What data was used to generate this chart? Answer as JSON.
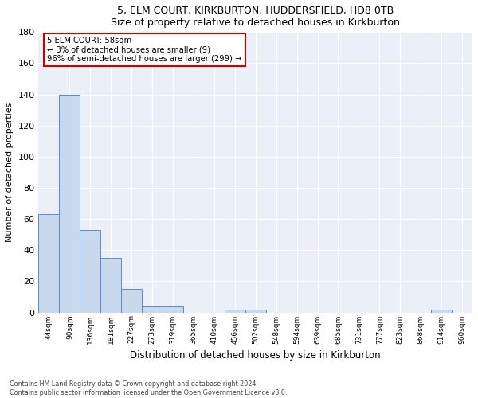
{
  "title1": "5, ELM COURT, KIRKBURTON, HUDDERSFIELD, HD8 0TB",
  "title2": "Size of property relative to detached houses in Kirkburton",
  "xlabel": "Distribution of detached houses by size in Kirkburton",
  "ylabel": "Number of detached properties",
  "bar_color": "#c8d9ee",
  "bar_edge_color": "#5b8cc8",
  "background_color": "#eaeff8",
  "grid_color": "#ffffff",
  "categories": [
    "44sqm",
    "90sqm",
    "136sqm",
    "181sqm",
    "227sqm",
    "273sqm",
    "319sqm",
    "365sqm",
    "410sqm",
    "456sqm",
    "502sqm",
    "548sqm",
    "594sqm",
    "639sqm",
    "685sqm",
    "731sqm",
    "777sqm",
    "823sqm",
    "868sqm",
    "914sqm",
    "960sqm"
  ],
  "values": [
    63,
    140,
    53,
    35,
    15,
    4,
    4,
    0,
    0,
    2,
    2,
    0,
    0,
    0,
    0,
    0,
    0,
    0,
    0,
    2,
    0
  ],
  "ylim": [
    0,
    180
  ],
  "yticks": [
    0,
    20,
    40,
    60,
    80,
    100,
    120,
    140,
    160,
    180
  ],
  "annotation_text": "5 ELM COURT: 58sqm\n← 3% of detached houses are smaller (9)\n96% of semi-detached houses are larger (299) →",
  "annotation_box_color": "#ffffff",
  "annotation_border_color": "#cc0000",
  "footer1": "Contains HM Land Registry data © Crown copyright and database right 2024.",
  "footer2": "Contains public sector information licensed under the Open Government Licence v3.0."
}
